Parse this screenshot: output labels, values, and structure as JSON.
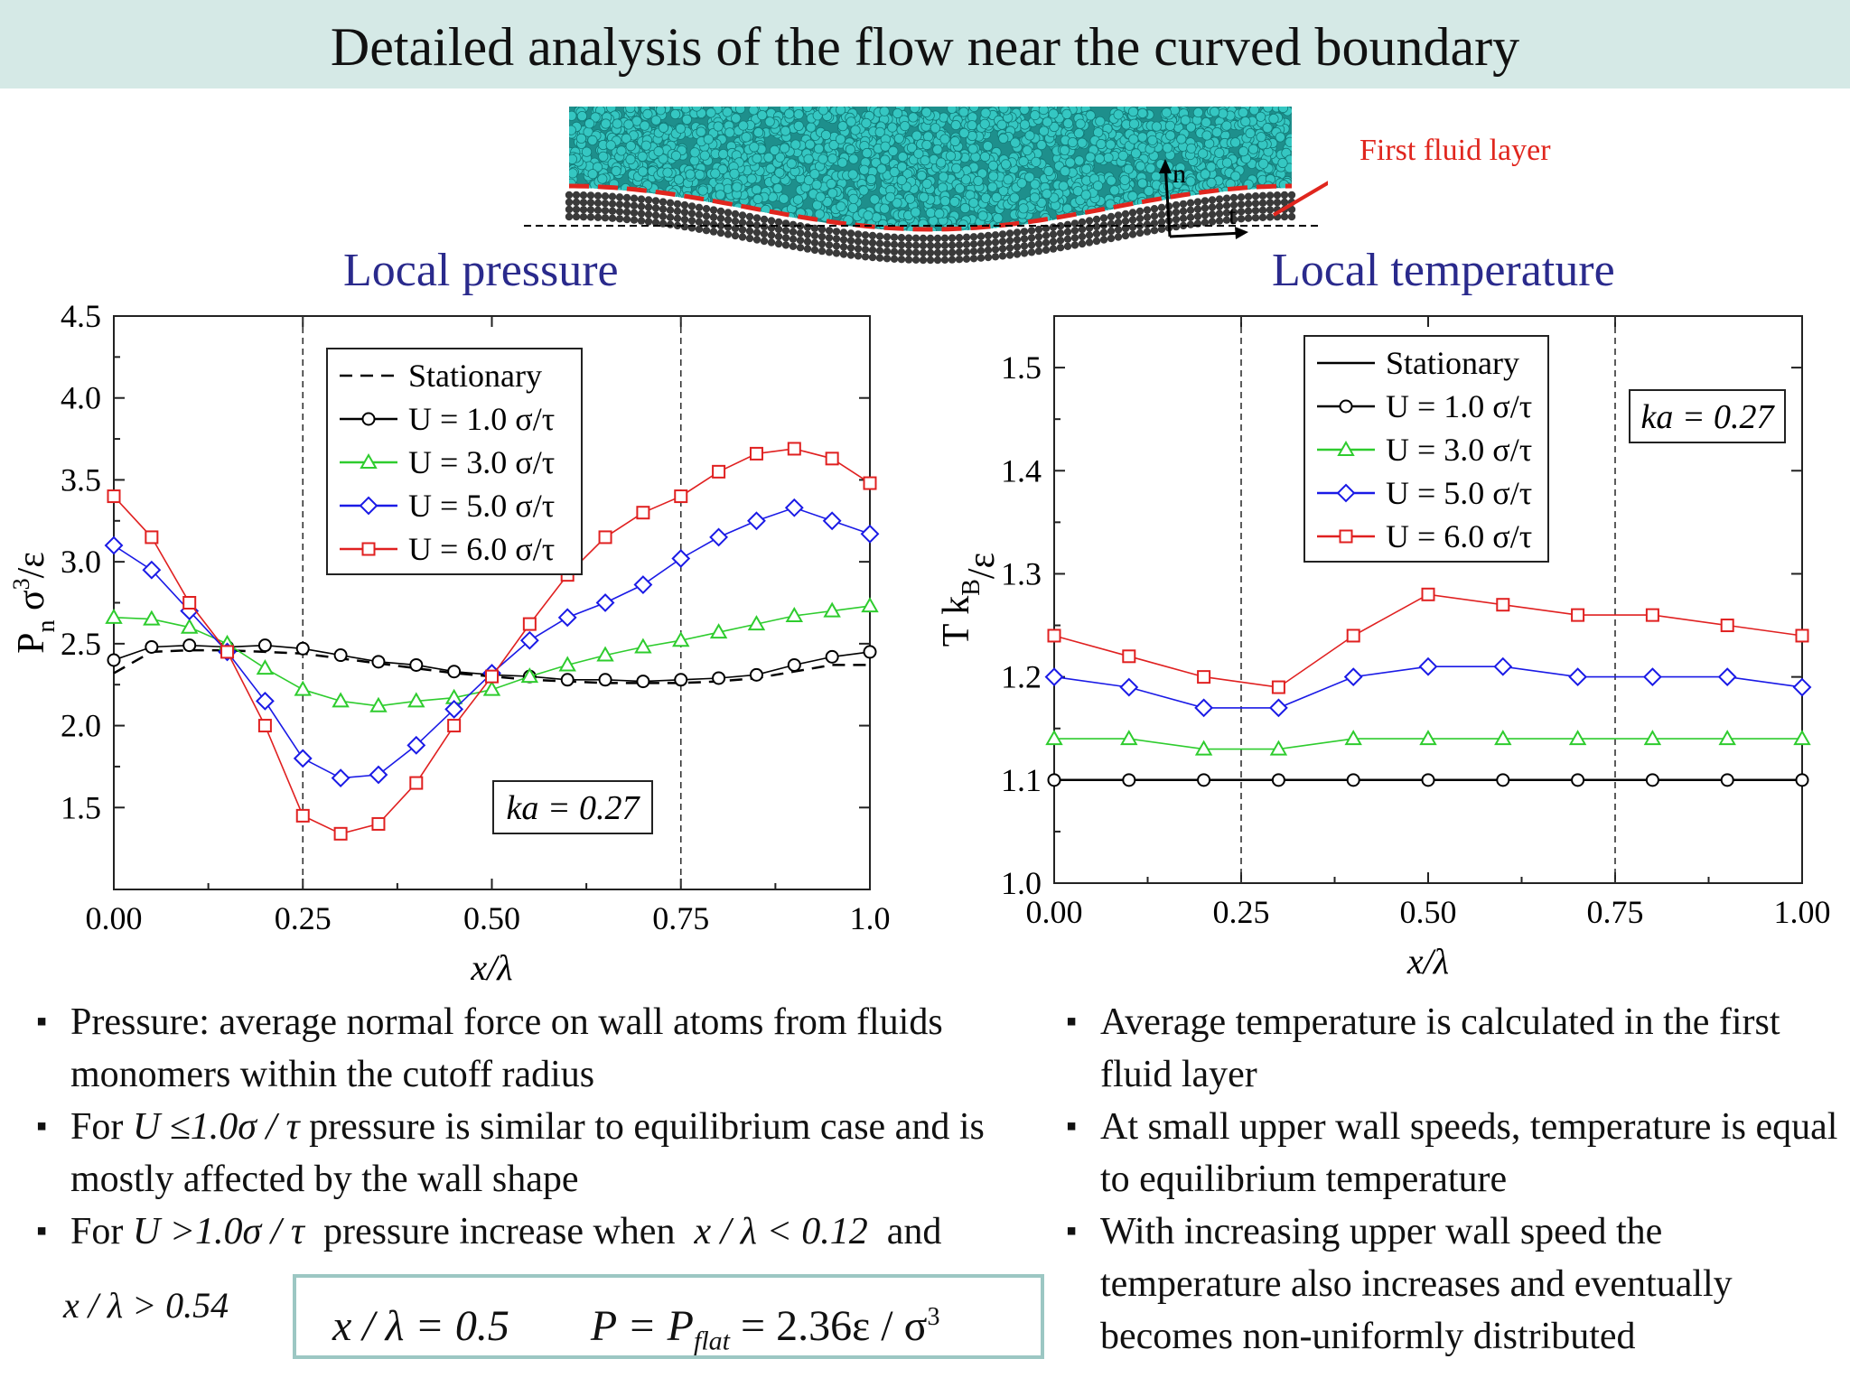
{
  "page": {
    "title": "Detailed analysis of the flow near the curved boundary",
    "wall_label": "First fluid layer",
    "wall_vec_n": "n",
    "wall_vec_t": "t",
    "colors": {
      "title_bg": "#d5e9e6",
      "header_text": "#2a2a8c",
      "fluid_atoms": "#35c7c2",
      "wall_atoms": "#3a3a3a",
      "layer_line": "#e0261e",
      "box_border": "#9cc7c3"
    }
  },
  "chart_data": [
    {
      "type": "scatter",
      "title": "Local pressure",
      "xlabel": "x/λ",
      "ylabel_main": "P",
      "ylabel_sub": "n",
      "ylabel_rest": " σ",
      "ylabel_sup": "3",
      "ylabel_end": "/ε",
      "xlim": [
        0,
        1.0
      ],
      "ylim": [
        1.0,
        4.5
      ],
      "xticks": [
        "0.00",
        "0.25",
        "0.50",
        "0.75",
        "1.0"
      ],
      "yticks": [
        "1.5",
        "2.0",
        "2.5",
        "3.0",
        "3.5",
        "4.0",
        "4.5"
      ],
      "vlines": [
        0.25,
        0.75
      ],
      "annotation": "ka = 0.27",
      "legend_position": "top-center",
      "series": [
        {
          "name": "Stationary",
          "marker": "none",
          "line": "dashed",
          "color": "#000000",
          "x": [
            0.0,
            0.05,
            0.1,
            0.15,
            0.2,
            0.25,
            0.3,
            0.35,
            0.4,
            0.45,
            0.5,
            0.55,
            0.6,
            0.65,
            0.7,
            0.75,
            0.8,
            0.85,
            0.9,
            0.95,
            1.0
          ],
          "y": [
            2.32,
            2.45,
            2.46,
            2.46,
            2.45,
            2.44,
            2.41,
            2.38,
            2.35,
            2.32,
            2.3,
            2.28,
            2.27,
            2.26,
            2.26,
            2.26,
            2.27,
            2.29,
            2.33,
            2.37,
            2.37
          ]
        },
        {
          "name": "U = 1.0 σ/τ",
          "marker": "circle",
          "line": "solid",
          "color": "#000000",
          "x": [
            0.0,
            0.05,
            0.1,
            0.15,
            0.2,
            0.25,
            0.3,
            0.35,
            0.4,
            0.45,
            0.5,
            0.55,
            0.6,
            0.65,
            0.7,
            0.75,
            0.8,
            0.85,
            0.9,
            0.95,
            1.0
          ],
          "y": [
            2.4,
            2.48,
            2.49,
            2.48,
            2.49,
            2.47,
            2.43,
            2.39,
            2.37,
            2.33,
            2.31,
            2.3,
            2.28,
            2.28,
            2.27,
            2.28,
            2.29,
            2.31,
            2.37,
            2.42,
            2.45
          ]
        },
        {
          "name": "U = 3.0 σ/τ",
          "marker": "triangle",
          "line": "solid",
          "color": "#2ecc2e",
          "x": [
            0.0,
            0.05,
            0.1,
            0.15,
            0.2,
            0.25,
            0.3,
            0.35,
            0.4,
            0.45,
            0.5,
            0.55,
            0.6,
            0.65,
            0.7,
            0.75,
            0.8,
            0.85,
            0.9,
            0.95,
            1.0
          ],
          "y": [
            2.66,
            2.65,
            2.6,
            2.5,
            2.35,
            2.22,
            2.15,
            2.12,
            2.15,
            2.17,
            2.22,
            2.3,
            2.37,
            2.43,
            2.48,
            2.52,
            2.57,
            2.62,
            2.67,
            2.7,
            2.73
          ]
        },
        {
          "name": "U = 5.0 σ/τ",
          "marker": "diamond",
          "line": "solid",
          "color": "#1a1ae6",
          "x": [
            0.0,
            0.05,
            0.1,
            0.15,
            0.2,
            0.25,
            0.3,
            0.35,
            0.4,
            0.45,
            0.5,
            0.55,
            0.6,
            0.65,
            0.7,
            0.75,
            0.8,
            0.85,
            0.9,
            0.95,
            1.0
          ],
          "y": [
            3.1,
            2.95,
            2.7,
            2.45,
            2.15,
            1.8,
            1.68,
            1.7,
            1.88,
            2.1,
            2.32,
            2.52,
            2.66,
            2.75,
            2.86,
            3.02,
            3.15,
            3.25,
            3.33,
            3.25,
            3.17
          ]
        },
        {
          "name": "U = 6.0 σ/τ",
          "marker": "square",
          "line": "solid",
          "color": "#e02020",
          "x": [
            0.0,
            0.05,
            0.1,
            0.15,
            0.2,
            0.25,
            0.3,
            0.35,
            0.4,
            0.45,
            0.5,
            0.55,
            0.6,
            0.65,
            0.7,
            0.75,
            0.8,
            0.85,
            0.9,
            0.95,
            1.0
          ],
          "y": [
            3.4,
            3.15,
            2.75,
            2.45,
            2.0,
            1.45,
            1.34,
            1.4,
            1.65,
            2.0,
            2.3,
            2.62,
            2.92,
            3.15,
            3.3,
            3.4,
            3.55,
            3.66,
            3.69,
            3.63,
            3.48
          ]
        }
      ]
    },
    {
      "type": "scatter",
      "title": "Local temperature",
      "xlabel": "x/λ",
      "ylabel_main": "T k",
      "ylabel_sub": "B",
      "ylabel_rest": "",
      "ylabel_sup": "",
      "ylabel_end": "/ε",
      "xlim": [
        0,
        1.0
      ],
      "ylim": [
        1.0,
        1.55
      ],
      "xticks": [
        "0.00",
        "0.25",
        "0.50",
        "0.75",
        "1.00"
      ],
      "yticks": [
        "1.0",
        "1.1",
        "1.2",
        "1.3",
        "1.4",
        "1.5"
      ],
      "vlines": [
        0.25,
        0.75
      ],
      "annotation": "ka = 0.27",
      "legend_position": "top-left",
      "series": [
        {
          "name": "Stationary",
          "marker": "none",
          "line": "solid",
          "color": "#000000",
          "x": [
            0.0,
            0.1,
            0.2,
            0.3,
            0.4,
            0.5,
            0.6,
            0.7,
            0.8,
            0.9,
            1.0
          ],
          "y": [
            1.1,
            1.1,
            1.1,
            1.1,
            1.1,
            1.1,
            1.1,
            1.1,
            1.1,
            1.1,
            1.1
          ]
        },
        {
          "name": "U = 1.0 σ/τ",
          "marker": "circle",
          "line": "solid",
          "color": "#000000",
          "x": [
            0.0,
            0.1,
            0.2,
            0.3,
            0.4,
            0.5,
            0.6,
            0.7,
            0.8,
            0.9,
            1.0
          ],
          "y": [
            1.1,
            1.1,
            1.1,
            1.1,
            1.1,
            1.1,
            1.1,
            1.1,
            1.1,
            1.1,
            1.1
          ]
        },
        {
          "name": "U = 3.0 σ/τ",
          "marker": "triangle",
          "line": "solid",
          "color": "#2ecc2e",
          "x": [
            0.0,
            0.1,
            0.2,
            0.3,
            0.4,
            0.5,
            0.6,
            0.7,
            0.8,
            0.9,
            1.0
          ],
          "y": [
            1.14,
            1.14,
            1.13,
            1.13,
            1.14,
            1.14,
            1.14,
            1.14,
            1.14,
            1.14,
            1.14
          ]
        },
        {
          "name": "U = 5.0 σ/τ",
          "marker": "diamond",
          "line": "solid",
          "color": "#1a1ae6",
          "x": [
            0.0,
            0.1,
            0.2,
            0.3,
            0.4,
            0.5,
            0.6,
            0.7,
            0.8,
            0.9,
            1.0
          ],
          "y": [
            1.2,
            1.19,
            1.17,
            1.17,
            1.2,
            1.21,
            1.21,
            1.2,
            1.2,
            1.2,
            1.19
          ]
        },
        {
          "name": "U = 6.0 σ/τ",
          "marker": "square",
          "line": "solid",
          "color": "#e02020",
          "x": [
            0.0,
            0.1,
            0.2,
            0.3,
            0.4,
            0.5,
            0.6,
            0.7,
            0.8,
            0.9,
            1.0
          ],
          "y": [
            1.24,
            1.22,
            1.2,
            1.19,
            1.24,
            1.28,
            1.27,
            1.26,
            1.26,
            1.25,
            1.24
          ]
        }
      ]
    }
  ],
  "bullets_left": {
    "b1": "Pressure: average normal force on wall atoms from fluids monomers within the cutoff radius",
    "b2_pre": "For ",
    "b2_math": "U ≤1.0σ / τ",
    "b2_post": " pressure is similar to equilibrium case and is mostly affected by the wall shape",
    "b3_pre": "For ",
    "b3_math": "U >1.0σ / τ",
    "b3_mid": "  pressure increase when  ",
    "b3_math2": "x / λ < 0.12",
    "b3_post": "  and",
    "b3_last": "x / λ > 0.54",
    "formula_a": "x / λ = 0.5",
    "formula_b": "P = P",
    "formula_sub": "flat",
    "formula_c": " = 2.36ε / σ",
    "formula_sup": "3"
  },
  "bullets_right": {
    "b1": "Average temperature is calculated in the first fluid layer",
    "b2": "At small upper wall speeds, temperature is equal to equilibrium temperature",
    "b3": "With increasing upper wall speed the temperature also increases and eventually becomes non-uniformly distributed"
  }
}
